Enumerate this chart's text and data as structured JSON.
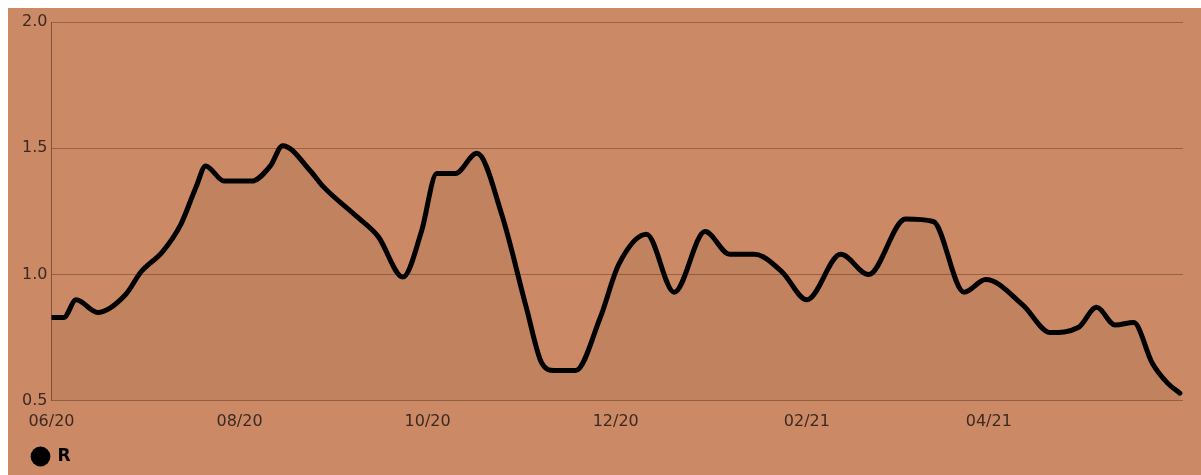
{
  "chart_data": {
    "type": "area",
    "x": [
      "2020-06-01",
      "2020-06-05",
      "2020-06-09",
      "2020-06-16",
      "2020-06-25",
      "2020-06-30",
      "2020-07-07",
      "2020-07-13",
      "2020-07-18",
      "2020-07-21",
      "2020-07-27",
      "2020-08-05",
      "2020-08-11",
      "2020-08-15",
      "2020-08-24",
      "2020-08-28",
      "2020-09-08",
      "2020-09-15",
      "2020-09-23",
      "2020-09-29",
      "2020-10-04",
      "2020-10-10",
      "2020-10-17",
      "2020-10-25",
      "2020-11-02",
      "2020-11-07",
      "2020-11-11",
      "2020-11-18",
      "2020-11-26",
      "2020-12-02",
      "2020-12-11",
      "2020-12-20",
      "2020-12-30",
      "2021-01-07",
      "2021-01-15",
      "2021-01-24",
      "2021-02-01",
      "2021-02-12",
      "2021-02-21",
      "2021-03-05",
      "2021-03-14",
      "2021-03-24",
      "2021-03-31",
      "2021-04-12",
      "2021-04-21",
      "2021-04-30",
      "2021-05-06",
      "2021-05-12",
      "2021-05-18",
      "2021-05-24",
      "2021-05-29",
      "2021-06-02"
    ],
    "series": [
      {
        "name": "R",
        "color": "#000000",
        "values": [
          0.83,
          0.83,
          0.9,
          0.85,
          0.92,
          1.01,
          1.09,
          1.2,
          1.35,
          1.43,
          1.37,
          1.37,
          1.43,
          1.51,
          1.41,
          1.35,
          1.23,
          1.15,
          0.99,
          1.17,
          1.4,
          1.4,
          1.48,
          1.24,
          0.87,
          0.65,
          0.62,
          0.62,
          0.83,
          1.04,
          1.16,
          0.93,
          1.17,
          1.08,
          1.08,
          1.01,
          0.9,
          1.08,
          1.0,
          1.22,
          1.21,
          0.93,
          0.98,
          0.88,
          0.77,
          0.79,
          0.87,
          0.8,
          0.81,
          0.65,
          0.57,
          0.53
        ]
      }
    ],
    "xlim": [
      "2020-06-01",
      "2021-06-03"
    ],
    "xticks": [
      {
        "value": "2020-06-01",
        "label": "06/20"
      },
      {
        "value": "2020-08-01",
        "label": "08/20"
      },
      {
        "value": "2020-10-01",
        "label": "10/20"
      },
      {
        "value": "2020-12-01",
        "label": "12/20"
      },
      {
        "value": "2021-02-01",
        "label": "02/21"
      },
      {
        "value": "2021-04-01",
        "label": "04/21"
      }
    ],
    "ylim": [
      0.5,
      2.0
    ],
    "yticks": [
      {
        "value": 0.5,
        "label": "0.5"
      },
      {
        "value": 1.0,
        "label": "1.0"
      },
      {
        "value": 1.5,
        "label": "1.5"
      },
      {
        "value": 2.0,
        "label": "2.0"
      }
    ],
    "grid": "y",
    "legend": "bottom left",
    "marker": "none",
    "line_style": "solid"
  }
}
